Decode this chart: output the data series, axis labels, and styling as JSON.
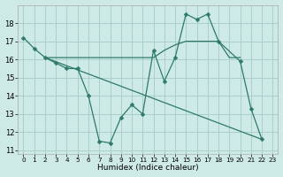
{
  "xlabel": "Humidex (Indice chaleur)",
  "background_color": "#ceeae6",
  "grid_color": "#aacfca",
  "line_color": "#2d7a6a",
  "xlim": [
    -0.5,
    23.5
  ],
  "ylim": [
    10.8,
    19.0
  ],
  "yticks": [
    11,
    12,
    13,
    14,
    15,
    16,
    17,
    18
  ],
  "xtick_labels": [
    "0",
    "1",
    "2",
    "3",
    "4",
    "5",
    "6",
    "7",
    "8",
    "9",
    "10",
    "11",
    "12",
    "13",
    "14",
    "15",
    "16",
    "17",
    "18",
    "19",
    "20",
    "21",
    "22",
    "23"
  ],
  "line1_x": [
    0,
    1,
    2,
    3,
    4,
    5,
    6,
    7,
    8,
    9,
    10,
    11,
    12,
    13,
    14,
    15,
    16,
    17,
    18,
    20,
    21,
    22
  ],
  "line1_y": [
    17.2,
    16.6,
    16.1,
    15.8,
    15.5,
    15.5,
    14.0,
    11.5,
    11.4,
    12.8,
    13.5,
    13.0,
    16.5,
    14.8,
    16.1,
    18.5,
    18.2,
    18.5,
    17.0,
    15.9,
    13.3,
    11.6
  ],
  "line2_x": [
    2,
    3,
    4,
    5,
    6,
    7,
    8,
    9,
    10,
    11,
    12,
    13,
    14,
    15,
    16,
    17,
    18,
    19,
    20
  ],
  "line2_y": [
    16.1,
    16.1,
    16.1,
    16.1,
    16.1,
    16.1,
    16.1,
    16.1,
    16.1,
    16.1,
    16.1,
    16.5,
    16.8,
    17.0,
    17.0,
    17.0,
    17.0,
    16.1,
    16.1
  ],
  "line3_x": [
    2,
    22
  ],
  "line3_y": [
    16.1,
    11.6
  ]
}
